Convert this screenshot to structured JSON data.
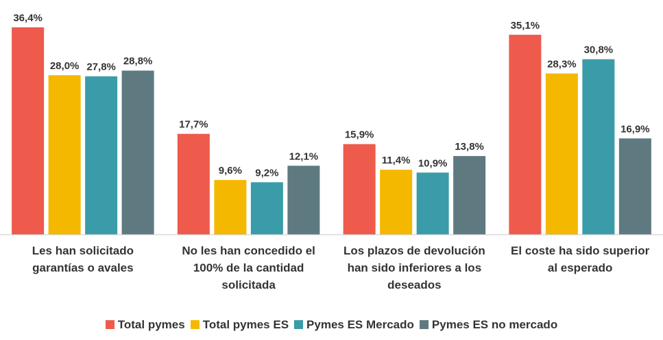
{
  "chart_data": {
    "type": "bar",
    "categories": [
      "Les han solicitado garantías o avales",
      "No les han concedido el 100% de la cantidad solicitada",
      "Los plazos de devolución han sido inferiores a los deseados",
      "El coste ha sido superior al esperado"
    ],
    "series": [
      {
        "name": "Total pymes",
        "color": "#ee5a4c",
        "values": [
          36.4,
          17.7,
          15.9,
          35.1
        ],
        "value_labels": [
          "36,4%",
          "17,7%",
          "15,9%",
          "35,1%"
        ]
      },
      {
        "name": "Total pymes ES",
        "color": "#f5b800",
        "values": [
          28.0,
          9.6,
          11.4,
          28.3
        ],
        "value_labels": [
          "28,0%",
          "9,6%",
          "11,4%",
          "28,3%"
        ]
      },
      {
        "name": "Pymes ES Mercado",
        "color": "#3a9ca8",
        "values": [
          27.8,
          9.2,
          10.9,
          30.8
        ],
        "value_labels": [
          "27,8%",
          "9,2%",
          "10,9%",
          "30,8%"
        ]
      },
      {
        "name": "Pymes ES no mercado",
        "color": "#5e7a80",
        "values": [
          28.8,
          12.1,
          13.8,
          16.9
        ],
        "value_labels": [
          "28,8%",
          "12,1%",
          "13,8%",
          "16,9%"
        ]
      }
    ],
    "ylim": [
      0,
      40
    ],
    "legend": "bottom"
  }
}
